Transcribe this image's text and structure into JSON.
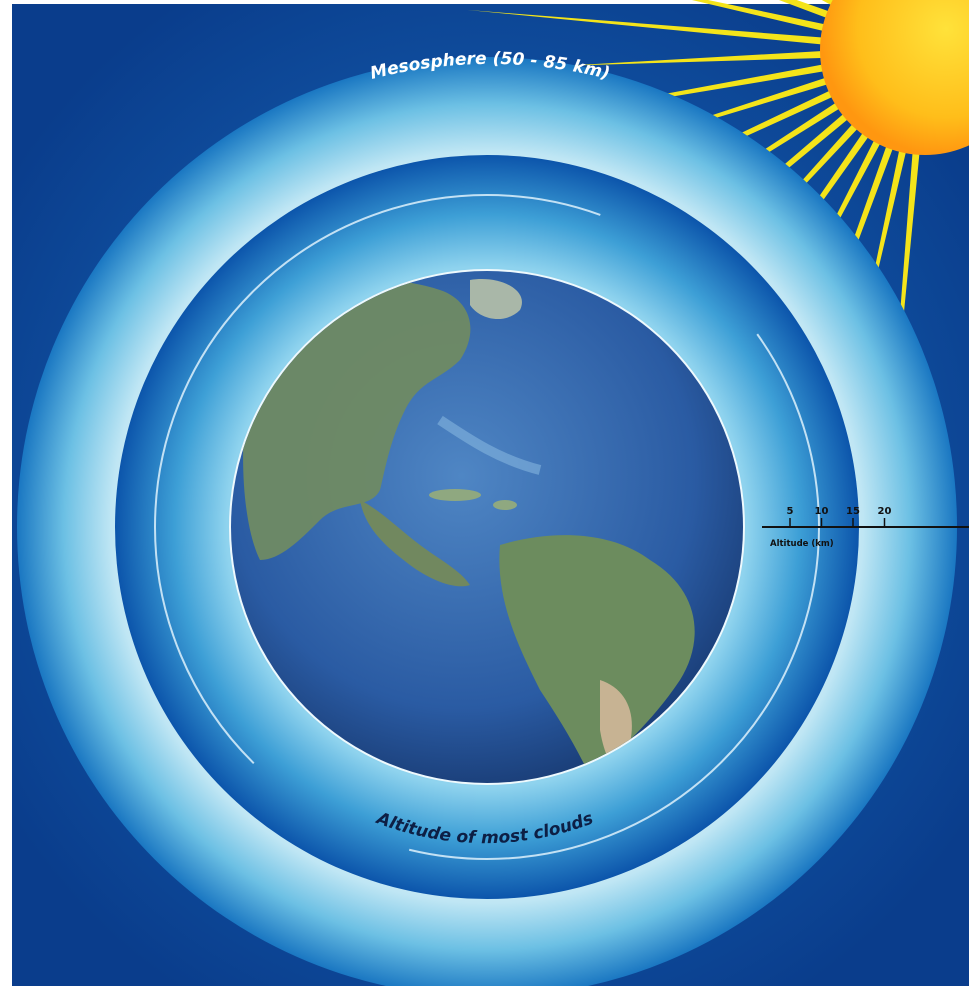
{
  "labels": {
    "mesosphere": "Mesosphere (50 - 85 km)",
    "clouds": "Altitude of most clouds"
  },
  "altitude_scale": {
    "ticks": [
      "5",
      "10",
      "15",
      "20"
    ],
    "caption": "Altitude (km)"
  },
  "colors": {
    "background_deep": "#0b3f8f",
    "background_mid": "#1263b8",
    "atmosphere_light": "#dff4fb",
    "atmosphere_mid": "#6ec4e6",
    "inner_band": "#0f5ab0",
    "ocean": "#2a5fa8",
    "land": "#6f8a63",
    "sun_core": "#ffd21f",
    "sun_edge": "#ff9e10",
    "sun_rays": "#f4e41a"
  },
  "icons": {
    "sun": "sun-icon",
    "earth": "earth-globe-icon"
  }
}
